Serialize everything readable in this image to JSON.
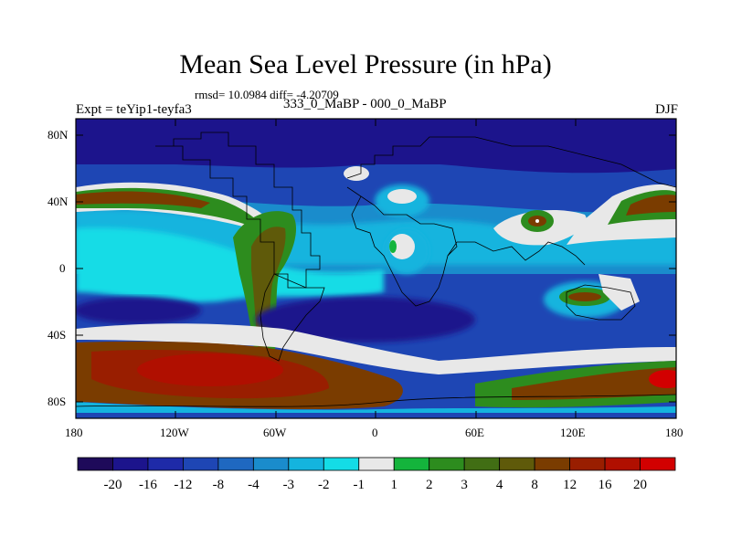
{
  "title": "Mean Sea Level Pressure (in hPa)",
  "stats": "rmsd= 10.0984 diff= -4.20709",
  "experiment": "Expt = teYip1-teyfa3",
  "difference_label": "333_0_MaBP - 000_0_MaBP",
  "season": "DJF",
  "latitude_labels": [
    "80N",
    "40N",
    "0",
    "40S",
    "80S"
  ],
  "longitude_labels": [
    "180",
    "120W",
    "60W",
    "0",
    "60E",
    "120E",
    "180"
  ],
  "colorbar": {
    "colors": [
      "#1e0a5a",
      "#1c148c",
      "#1e2aa8",
      "#1e46b4",
      "#1f68c0",
      "#1a8ccc",
      "#14b4de",
      "#14dce6",
      "#e8e8e8",
      "#14b43c",
      "#2d8c1e",
      "#416e14",
      "#5f5a0a",
      "#7a3c00",
      "#991e00",
      "#b00f00",
      "#d20000"
    ],
    "labels": [
      "-20",
      "-16",
      "-12",
      "-8",
      "-4",
      "-3",
      "-2",
      "-1",
      "1",
      "2",
      "3",
      "4",
      "8",
      "12",
      "16",
      "20"
    ]
  }
}
